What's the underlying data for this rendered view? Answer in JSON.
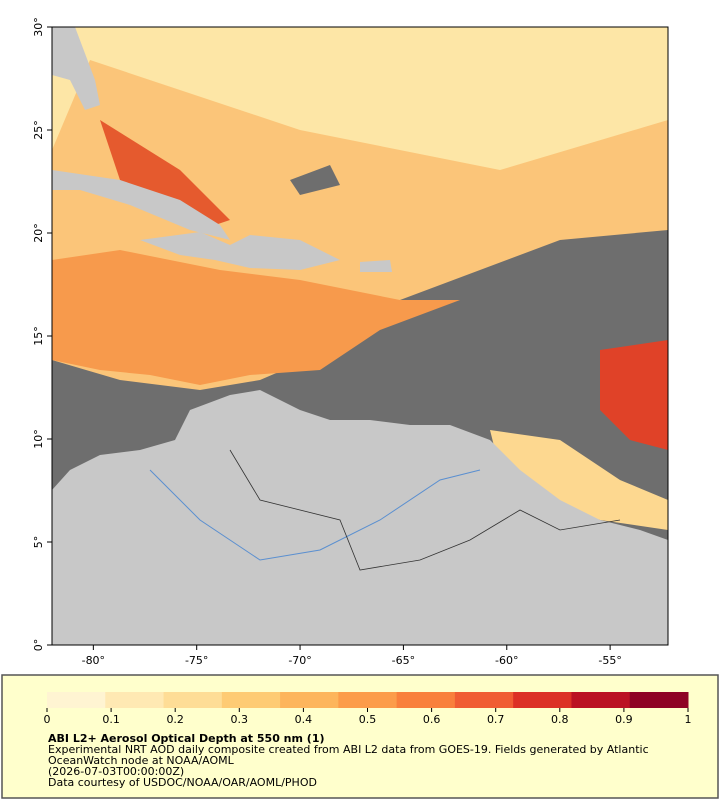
{
  "map": {
    "xlim": [
      -82,
      -52.2
    ],
    "ylim": [
      0,
      30
    ],
    "xticks": [
      {
        "value": -80,
        "label": "-80°"
      },
      {
        "value": -75,
        "label": "-75°"
      },
      {
        "value": -70,
        "label": "-70°"
      },
      {
        "value": -65,
        "label": "-65°"
      },
      {
        "value": -60,
        "label": "-60°"
      },
      {
        "value": -55,
        "label": "-55°"
      }
    ],
    "yticks": [
      {
        "value": 0,
        "label": "0°"
      },
      {
        "value": 5,
        "label": "5°"
      },
      {
        "value": 10,
        "label": "10°"
      },
      {
        "value": 15,
        "label": "15°"
      },
      {
        "value": 20,
        "label": "20°"
      },
      {
        "value": 25,
        "label": "25°"
      },
      {
        "value": 30,
        "label": "30°"
      }
    ]
  },
  "colorbar": {
    "lim": [
      0,
      1
    ],
    "ticks": [
      0,
      0.1,
      0.2,
      0.3,
      0.4,
      0.5,
      0.6,
      0.7,
      0.8,
      0.9,
      1
    ],
    "colors": [
      "#fff4d2",
      "#ffe9b3",
      "#fedd96",
      "#fecb74",
      "#fdb55c",
      "#fc9c4a",
      "#f9803c",
      "#f05d33",
      "#dc3126",
      "#bb1223",
      "#8e0325"
    ]
  },
  "caption": {
    "title": "ABI L2+ Aerosol Optical Depth at 550 nm (1)",
    "lines": [
      "Experimental NRT AOD daily composite created from ABI L2 data from GOES-19. Fields generated by Atlantic",
      "OceanWatch node at NOAA/AOML",
      "(2026-07-03T00:00:00Z)",
      "Data courtesy of USDOC/NOAA/OAR/AOML/PHOD"
    ]
  }
}
